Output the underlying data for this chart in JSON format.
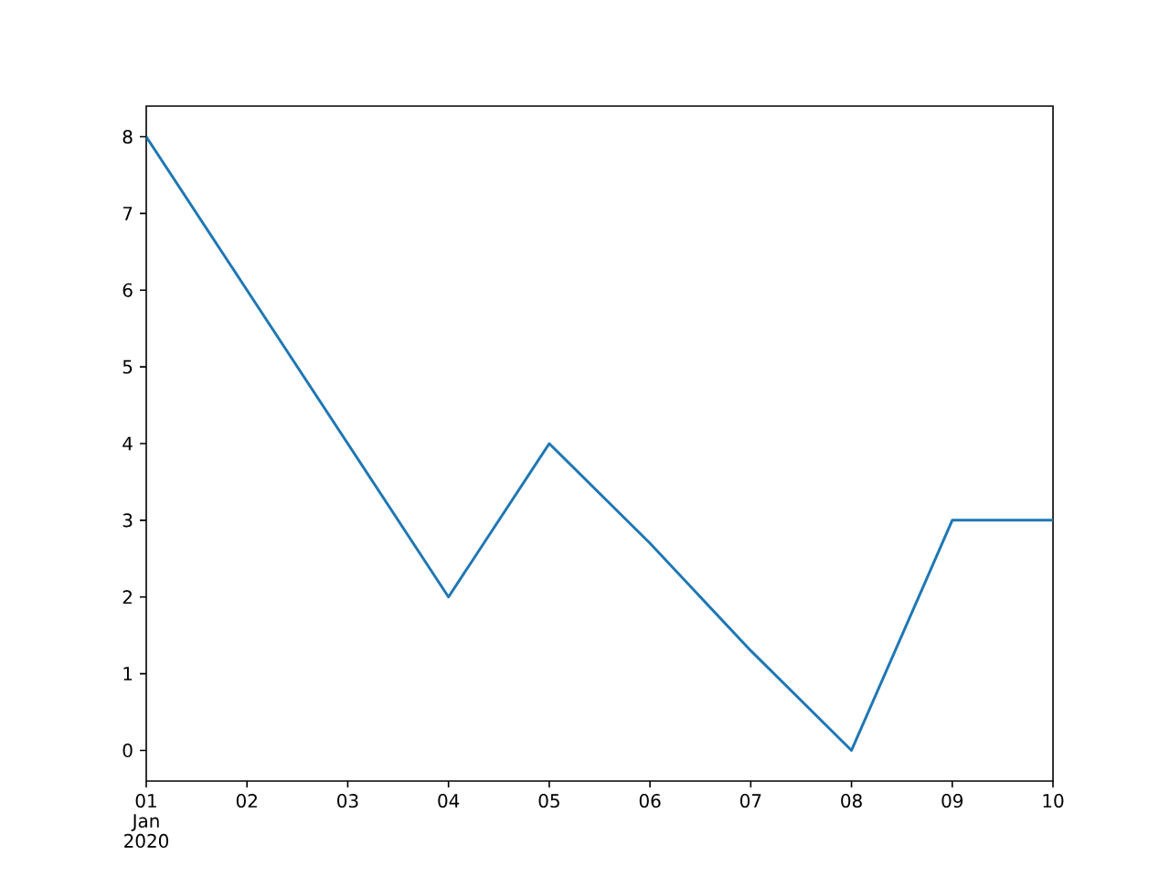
{
  "chart_data": {
    "type": "line",
    "x": [
      "2020-01-01",
      "2020-01-02",
      "2020-01-03",
      "2020-01-04",
      "2020-01-05",
      "2020-01-06",
      "2020-01-07",
      "2020-01-08",
      "2020-01-09",
      "2020-01-10"
    ],
    "series": [
      {
        "color": "#1f77b4",
        "values": [
          8,
          6,
          4,
          2,
          4,
          2.7,
          1.3,
          0,
          3,
          3
        ]
      }
    ],
    "xlim": [
      "2020-01-01",
      "2020-01-10"
    ],
    "xticks": [
      {
        "value": "2020-01-01",
        "label": "01 Jan 2020"
      },
      {
        "value": "2020-01-02",
        "label": "02"
      },
      {
        "value": "2020-01-03",
        "label": "03"
      },
      {
        "value": "2020-01-04",
        "label": "04"
      },
      {
        "value": "2020-01-05",
        "label": "05"
      },
      {
        "value": "2020-01-06",
        "label": "06"
      },
      {
        "value": "2020-01-07",
        "label": "07"
      },
      {
        "value": "2020-01-08",
        "label": "08"
      },
      {
        "value": "2020-01-09",
        "label": "09"
      },
      {
        "value": "2020-01-10",
        "label": "10"
      }
    ],
    "ylim": [
      -0.4,
      8.4
    ],
    "yticks": [
      0,
      1,
      2,
      3,
      4,
      5,
      6,
      7,
      8
    ],
    "marker": "none",
    "line_style": "solid"
  }
}
